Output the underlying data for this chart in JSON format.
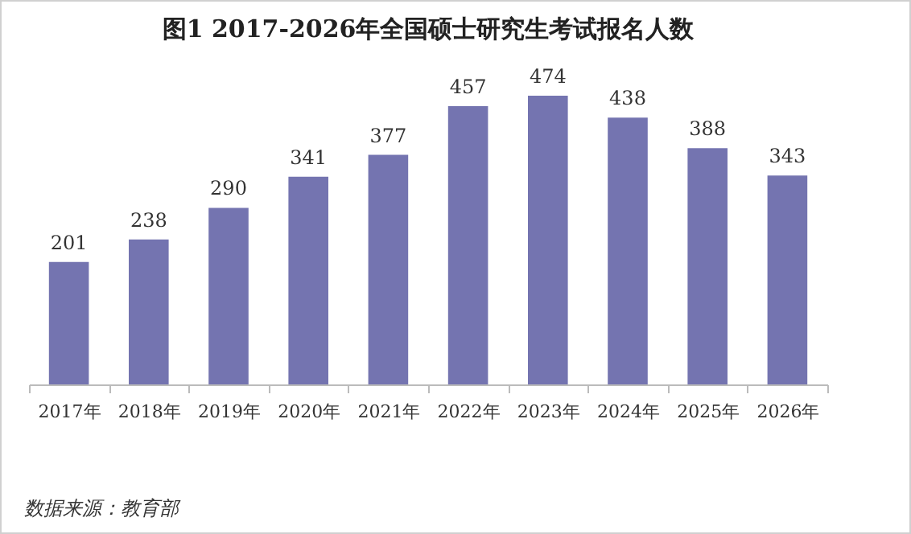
{
  "chart_data": {
    "type": "bar",
    "title": "图1  2017-2026年全国硕士研究生考试报名人数",
    "categories": [
      "2017年",
      "2018年",
      "2019年",
      "2020年",
      "2021年",
      "2022年",
      "2023年",
      "2024年",
      "2025年",
      "2026年"
    ],
    "values": [
      201,
      238,
      290,
      341,
      377,
      457,
      474,
      438,
      388,
      343
    ],
    "color": "#7474b0",
    "data_labels": true,
    "grid": false,
    "tick_labels": "x",
    "annotations": [
      "数据来源：教育部"
    ]
  }
}
